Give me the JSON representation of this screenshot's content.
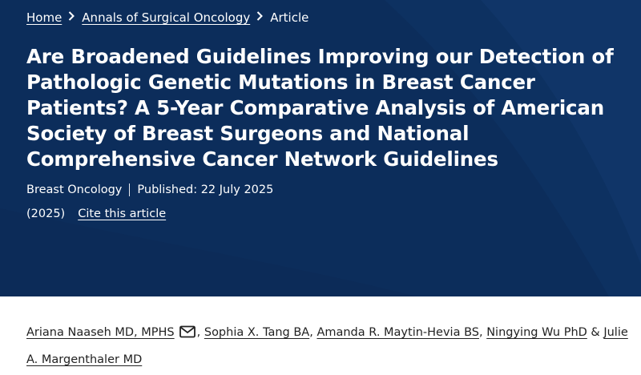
{
  "breadcrumb": {
    "home": "Home",
    "journal": "Annals of Surgical Oncology",
    "current": "Article"
  },
  "article": {
    "title": "Are Broadened Guidelines Improving our Detection of Pathologic Genetic Mutations in Breast Cancer Patients? A 5-Year Comparative Analysis of American Society of Breast Surgeons and National Comprehensive Cancer Network Guidelines",
    "section": "Breast Oncology",
    "published": "Published: 22 July 2025",
    "year": "(2025)",
    "cite_label": "Cite this article"
  },
  "authors": {
    "list": [
      {
        "name": "Ariana Naaseh MD, MPHS"
      },
      {
        "name": "Sophia X. Tang BA"
      },
      {
        "name": "Amanda R. Maytin-Hevia BS"
      },
      {
        "name": "Ningying Wu PhD"
      },
      {
        "name": "Julie A. Margenthaler MD"
      }
    ],
    "separator": ", ",
    "last_separator": " & "
  },
  "icons": {
    "email": "mail-icon",
    "breadcrumb_separator": "chevron-right-icon"
  },
  "colors": {
    "hero_background": "#0c2d5b",
    "hero_text": "#ffffff",
    "body_text": "#222222"
  }
}
